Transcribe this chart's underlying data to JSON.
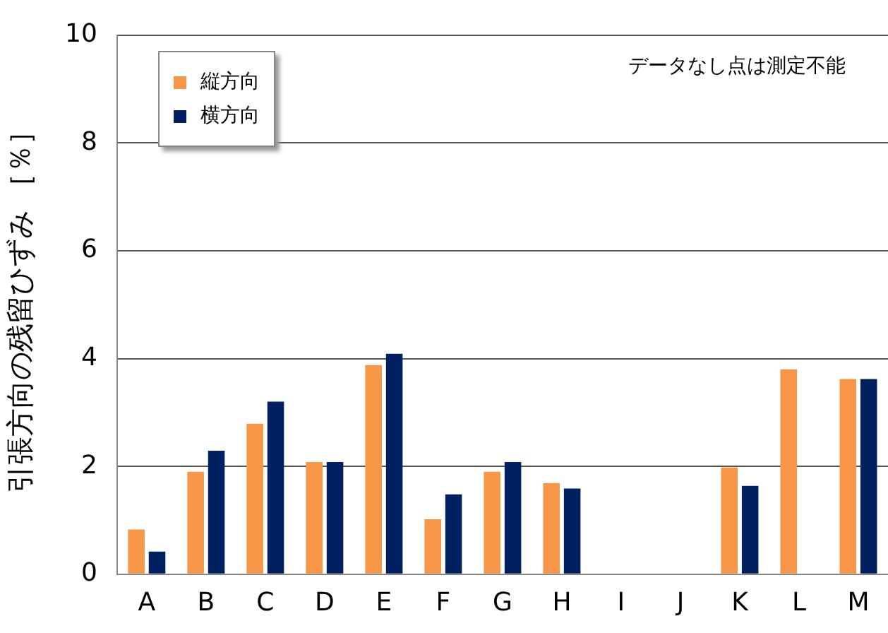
{
  "chart_data": {
    "type": "bar",
    "ylabel": "引張方向の残留ひずみ ［％］",
    "annotations": [
      "データなし点は測定不能"
    ],
    "categories": [
      "A",
      "B",
      "C",
      "D",
      "E",
      "F",
      "G",
      "H",
      "I",
      "J",
      "K",
      "L",
      "M"
    ],
    "series": [
      {
        "name": "縦方向",
        "color": "#f79646",
        "values": [
          0.83,
          1.9,
          2.79,
          2.08,
          3.88,
          1.02,
          1.9,
          1.69,
          null,
          null,
          1.98,
          3.8,
          3.62
        ]
      },
      {
        "name": "横方向",
        "color": "#002060",
        "values": [
          0.42,
          2.29,
          3.2,
          2.08,
          4.09,
          1.48,
          2.08,
          1.59,
          null,
          null,
          1.64,
          null,
          3.62
        ]
      }
    ],
    "ylim": [
      0,
      10
    ],
    "yticks": [
      0,
      2,
      4,
      6,
      8,
      10
    ],
    "grid": "y",
    "legend": "top left"
  }
}
